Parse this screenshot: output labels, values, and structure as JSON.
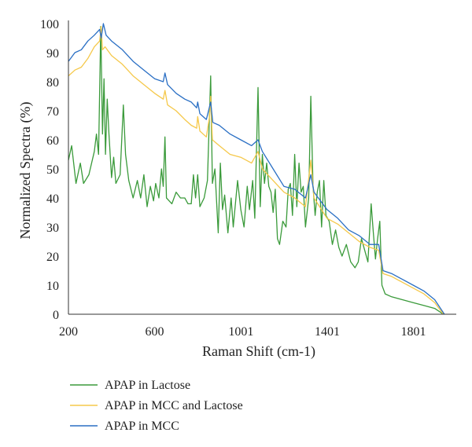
{
  "chart_data": {
    "type": "line",
    "xlabel": "Raman Shift (cm-1)",
    "ylabel": "Normalized Spectra (%)",
    "xlim": [
      200,
      2000
    ],
    "ylim": [
      0,
      100
    ],
    "x_ticks": [
      200,
      600,
      1001,
      1401,
      1801
    ],
    "y_ticks": [
      0,
      10,
      20,
      30,
      40,
      50,
      60,
      70,
      80,
      90,
      100
    ],
    "grid": false,
    "legend_position": "bottom-left",
    "series": [
      {
        "name": "APAP in Lactose",
        "color": "#3a9a3a",
        "points": [
          [
            200,
            53
          ],
          [
            215,
            58
          ],
          [
            235,
            45
          ],
          [
            255,
            52
          ],
          [
            270,
            45
          ],
          [
            295,
            48
          ],
          [
            320,
            56
          ],
          [
            330,
            62
          ],
          [
            340,
            55
          ],
          [
            350,
            99
          ],
          [
            358,
            62
          ],
          [
            365,
            81
          ],
          [
            372,
            55
          ],
          [
            380,
            74
          ],
          [
            388,
            62
          ],
          [
            400,
            47
          ],
          [
            410,
            54
          ],
          [
            420,
            45
          ],
          [
            440,
            48
          ],
          [
            455,
            72
          ],
          [
            465,
            55
          ],
          [
            480,
            46
          ],
          [
            500,
            40
          ],
          [
            520,
            46
          ],
          [
            535,
            40
          ],
          [
            550,
            48
          ],
          [
            565,
            37
          ],
          [
            580,
            44
          ],
          [
            595,
            39
          ],
          [
            605,
            45
          ],
          [
            620,
            40
          ],
          [
            632,
            50
          ],
          [
            640,
            44
          ],
          [
            648,
            61
          ],
          [
            655,
            40
          ],
          [
            680,
            38
          ],
          [
            700,
            42
          ],
          [
            720,
            40
          ],
          [
            740,
            40
          ],
          [
            755,
            38
          ],
          [
            770,
            38
          ],
          [
            780,
            48
          ],
          [
            790,
            40
          ],
          [
            800,
            48
          ],
          [
            810,
            37
          ],
          [
            830,
            40
          ],
          [
            845,
            46
          ],
          [
            860,
            82
          ],
          [
            868,
            45
          ],
          [
            880,
            50
          ],
          [
            895,
            28
          ],
          [
            905,
            52
          ],
          [
            915,
            36
          ],
          [
            925,
            41
          ],
          [
            940,
            28
          ],
          [
            955,
            40
          ],
          [
            965,
            30
          ],
          [
            985,
            46
          ],
          [
            1000,
            36
          ],
          [
            1015,
            30
          ],
          [
            1030,
            44
          ],
          [
            1040,
            36
          ],
          [
            1055,
            46
          ],
          [
            1065,
            33
          ],
          [
            1080,
            78
          ],
          [
            1090,
            37
          ],
          [
            1100,
            55
          ],
          [
            1110,
            45
          ],
          [
            1120,
            52
          ],
          [
            1130,
            44
          ],
          [
            1140,
            42
          ],
          [
            1150,
            35
          ],
          [
            1160,
            43
          ],
          [
            1170,
            26
          ],
          [
            1180,
            24
          ],
          [
            1195,
            32
          ],
          [
            1210,
            30
          ],
          [
            1220,
            43
          ],
          [
            1230,
            45
          ],
          [
            1240,
            34
          ],
          [
            1250,
            55
          ],
          [
            1260,
            37
          ],
          [
            1270,
            52
          ],
          [
            1280,
            42
          ],
          [
            1290,
            44
          ],
          [
            1300,
            30
          ],
          [
            1315,
            40
          ],
          [
            1325,
            75
          ],
          [
            1335,
            44
          ],
          [
            1345,
            34
          ],
          [
            1355,
            42
          ],
          [
            1365,
            46
          ],
          [
            1375,
            30
          ],
          [
            1385,
            46
          ],
          [
            1395,
            34
          ],
          [
            1410,
            32
          ],
          [
            1425,
            24
          ],
          [
            1440,
            29
          ],
          [
            1455,
            23
          ],
          [
            1470,
            20
          ],
          [
            1490,
            24
          ],
          [
            1510,
            18
          ],
          [
            1530,
            16
          ],
          [
            1545,
            18
          ],
          [
            1560,
            26
          ],
          [
            1575,
            22
          ],
          [
            1590,
            18
          ],
          [
            1605,
            38
          ],
          [
            1615,
            28
          ],
          [
            1625,
            19
          ],
          [
            1635,
            26
          ],
          [
            1645,
            32
          ],
          [
            1655,
            10
          ],
          [
            1670,
            7
          ],
          [
            1700,
            6
          ],
          [
            1750,
            5
          ],
          [
            1800,
            4
          ],
          [
            1850,
            3
          ],
          [
            1900,
            2
          ],
          [
            1940,
            0
          ]
        ]
      },
      {
        "name": "APAP in MCC and Lactose",
        "color": "#f5c84a",
        "points": [
          [
            200,
            82
          ],
          [
            230,
            84
          ],
          [
            260,
            85
          ],
          [
            290,
            88
          ],
          [
            320,
            92
          ],
          [
            345,
            94
          ],
          [
            352,
            99
          ],
          [
            358,
            91
          ],
          [
            370,
            92
          ],
          [
            400,
            89
          ],
          [
            450,
            86
          ],
          [
            500,
            82
          ],
          [
            550,
            79
          ],
          [
            600,
            76
          ],
          [
            640,
            74
          ],
          [
            648,
            77
          ],
          [
            660,
            72
          ],
          [
            700,
            70
          ],
          [
            740,
            67
          ],
          [
            770,
            65
          ],
          [
            795,
            64
          ],
          [
            800,
            68
          ],
          [
            810,
            63
          ],
          [
            840,
            61
          ],
          [
            855,
            68
          ],
          [
            860,
            75
          ],
          [
            868,
            60
          ],
          [
            900,
            58
          ],
          [
            950,
            55
          ],
          [
            1000,
            54
          ],
          [
            1050,
            52
          ],
          [
            1080,
            56
          ],
          [
            1100,
            50
          ],
          [
            1150,
            46
          ],
          [
            1200,
            42
          ],
          [
            1250,
            40
          ],
          [
            1300,
            37
          ],
          [
            1325,
            53
          ],
          [
            1340,
            40
          ],
          [
            1400,
            33
          ],
          [
            1450,
            31
          ],
          [
            1500,
            28
          ],
          [
            1550,
            25
          ],
          [
            1600,
            23
          ],
          [
            1640,
            22
          ],
          [
            1660,
            14
          ],
          [
            1700,
            13
          ],
          [
            1750,
            11
          ],
          [
            1800,
            9
          ],
          [
            1850,
            7
          ],
          [
            1900,
            4
          ],
          [
            1940,
            0
          ]
        ]
      },
      {
        "name": "APAP in MCC",
        "color": "#2a6fc4",
        "points": [
          [
            200,
            87
          ],
          [
            230,
            90
          ],
          [
            260,
            91
          ],
          [
            290,
            94
          ],
          [
            320,
            96
          ],
          [
            345,
            98
          ],
          [
            352,
            95
          ],
          [
            362,
            100
          ],
          [
            375,
            96
          ],
          [
            400,
            94
          ],
          [
            450,
            91
          ],
          [
            500,
            87
          ],
          [
            550,
            84
          ],
          [
            600,
            81
          ],
          [
            640,
            80
          ],
          [
            648,
            83
          ],
          [
            660,
            79
          ],
          [
            700,
            76
          ],
          [
            740,
            74
          ],
          [
            770,
            73
          ],
          [
            795,
            71
          ],
          [
            800,
            73
          ],
          [
            810,
            69
          ],
          [
            840,
            67
          ],
          [
            860,
            73
          ],
          [
            870,
            66
          ],
          [
            900,
            65
          ],
          [
            950,
            62
          ],
          [
            1000,
            60
          ],
          [
            1050,
            58
          ],
          [
            1080,
            60
          ],
          [
            1100,
            56
          ],
          [
            1150,
            50
          ],
          [
            1200,
            44
          ],
          [
            1250,
            43
          ],
          [
            1300,
            40
          ],
          [
            1325,
            48
          ],
          [
            1340,
            42
          ],
          [
            1400,
            36
          ],
          [
            1450,
            33
          ],
          [
            1500,
            29
          ],
          [
            1550,
            27
          ],
          [
            1600,
            24
          ],
          [
            1640,
            24
          ],
          [
            1660,
            15
          ],
          [
            1700,
            14
          ],
          [
            1750,
            12
          ],
          [
            1800,
            10
          ],
          [
            1850,
            8
          ],
          [
            1900,
            5
          ],
          [
            1945,
            0
          ]
        ]
      }
    ]
  }
}
